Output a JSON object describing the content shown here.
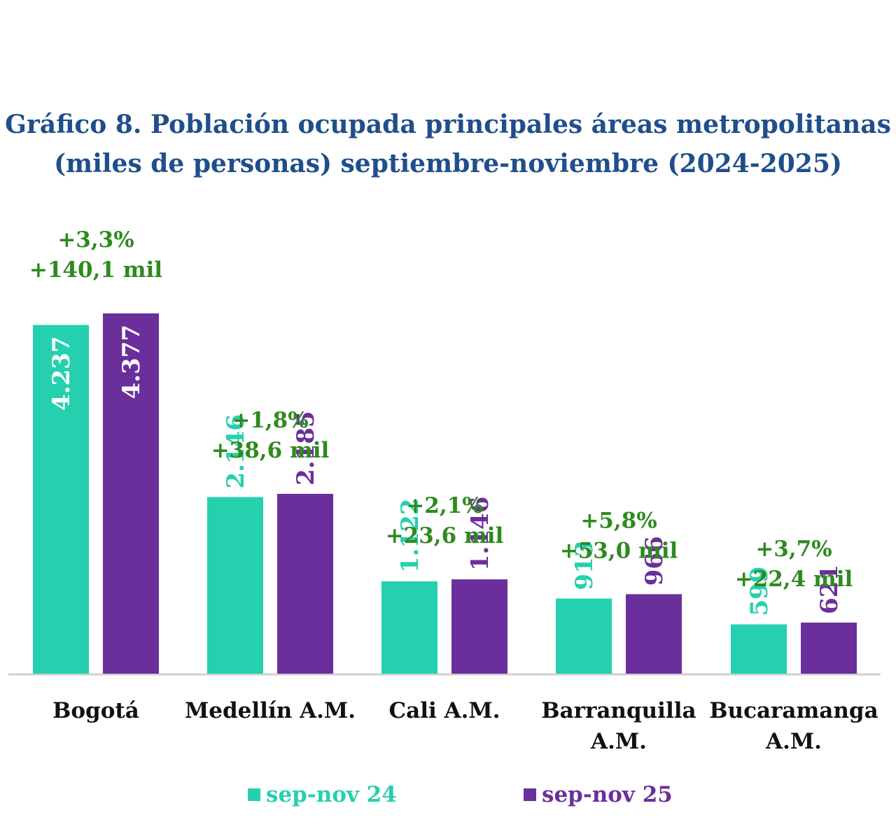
{
  "chart_data": {
    "type": "bar",
    "title_line1": "Gráfico 8. Población ocupada principales áreas metropolitanas",
    "title_line2": "(miles de personas) septiembre-noviembre (2024-2025)",
    "categories": [
      [
        "Bogotá"
      ],
      [
        "Medellín A.M."
      ],
      [
        "Cali A.M."
      ],
      [
        "Barranquilla",
        "A.M."
      ],
      [
        "Bucaramanga",
        "A.M."
      ]
    ],
    "series": [
      {
        "name": "sep-nov 24",
        "color": "#25d0ae",
        "values": [
          4237,
          2146,
          1122,
          913,
          599
        ],
        "labels": [
          "4.237",
          "2.146",
          "1.122",
          "913",
          "599"
        ]
      },
      {
        "name": "sep-nov 25",
        "color": "#6b2f9c",
        "values": [
          4377,
          2185,
          1146,
          966,
          621
        ],
        "labels": [
          "4.377",
          "2.185",
          "1.146",
          "966",
          "621"
        ]
      }
    ],
    "annotations": [
      [
        "+3,3%",
        "+140,1 mil"
      ],
      [
        "+1,8%",
        "+38,6 mil"
      ],
      [
        "+2,1%",
        "+23,6 mil"
      ],
      [
        "+5,8%",
        "+53,0 mil"
      ],
      [
        "+3,7%",
        "+22,4 mil"
      ]
    ],
    "annotation_color": "#2e8a1e",
    "ylim": [
      0,
      4377
    ],
    "grid": false,
    "legend_position": "bottom"
  }
}
